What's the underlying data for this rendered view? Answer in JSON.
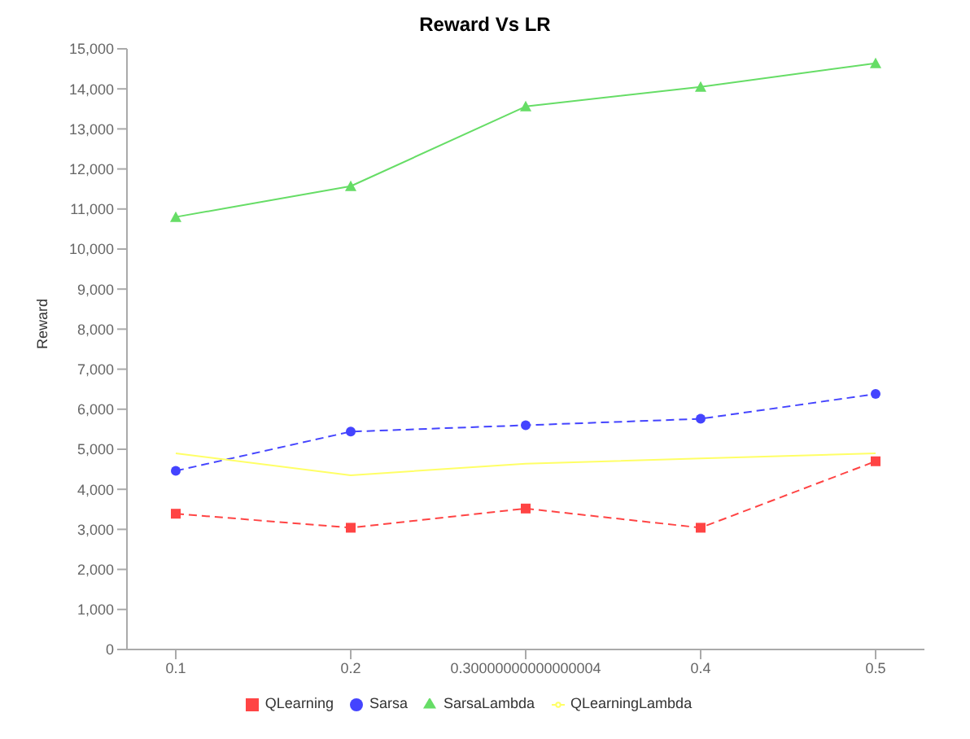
{
  "chart_data": {
    "type": "line",
    "title": "Reward Vs LR",
    "ylabel": "Reward",
    "categories": [
      "0.1",
      "0.2",
      "0.30000000000000004",
      "0.4",
      "0.5"
    ],
    "series": [
      {
        "name": "QLearning",
        "color": "#ff4444",
        "values": [
          3390,
          3040,
          3520,
          3040,
          4700
        ],
        "marker": "square",
        "line_style": "dashed"
      },
      {
        "name": "Sarsa",
        "color": "#4444ff",
        "values": [
          4460,
          5440,
          5600,
          5760,
          6380
        ],
        "marker": "circle",
        "line_style": "dashed"
      },
      {
        "name": "SarsaLambda",
        "color": "#66dd66",
        "values": [
          10800,
          11570,
          13560,
          14050,
          14640
        ],
        "marker": "triangle",
        "line_style": "solid"
      },
      {
        "name": "QLearningLambda",
        "color": "#ffff66",
        "values": [
          4900,
          4350,
          4640,
          4770,
          4900
        ],
        "marker": "none",
        "line_style": "solid"
      }
    ],
    "ylim": [
      0,
      15000
    ],
    "yticks": [
      {
        "value": 0,
        "label": "0"
      },
      {
        "value": 1000,
        "label": "1,000"
      },
      {
        "value": 2000,
        "label": "2,000"
      },
      {
        "value": 3000,
        "label": "3,000"
      },
      {
        "value": 4000,
        "label": "4,000"
      },
      {
        "value": 5000,
        "label": "5,000"
      },
      {
        "value": 6000,
        "label": "6,000"
      },
      {
        "value": 7000,
        "label": "7,000"
      },
      {
        "value": 8000,
        "label": "8,000"
      },
      {
        "value": 9000,
        "label": "9,000"
      },
      {
        "value": 10000,
        "label": "10,000"
      },
      {
        "value": 11000,
        "label": "11,000"
      },
      {
        "value": 12000,
        "label": "12,000"
      },
      {
        "value": 13000,
        "label": "13,000"
      },
      {
        "value": 14000,
        "label": "14,000"
      },
      {
        "value": 15000,
        "label": "15,000"
      }
    ],
    "grid": false,
    "legend": "bottom"
  }
}
